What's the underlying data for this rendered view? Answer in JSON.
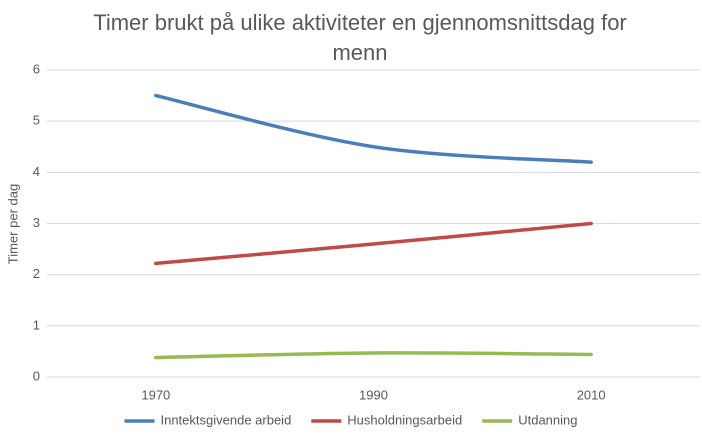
{
  "chart_data": {
    "type": "line",
    "title": "Timer brukt på ulike aktiviteter en gjennomsnittsdag for menn",
    "y_label": "Timer per dag",
    "categories": [
      "1970",
      "1990",
      "2010"
    ],
    "series": [
      {
        "name": "Inntektsgivende arbeid",
        "color": "#4a7ebb",
        "values": [
          5.5,
          4.5,
          4.2
        ]
      },
      {
        "name": "Husholdningsarbeid",
        "color": "#be4b48",
        "values": [
          2.22,
          2.6,
          3.0
        ]
      },
      {
        "name": "Utdanning",
        "color": "#98b954",
        "values": [
          0.38,
          0.47,
          0.44
        ]
      }
    ],
    "ylim": [
      0,
      6
    ],
    "yticks": [
      0,
      1,
      2,
      3,
      4,
      5,
      6
    ],
    "grid": true,
    "smooth": true,
    "legend": "bottom"
  }
}
